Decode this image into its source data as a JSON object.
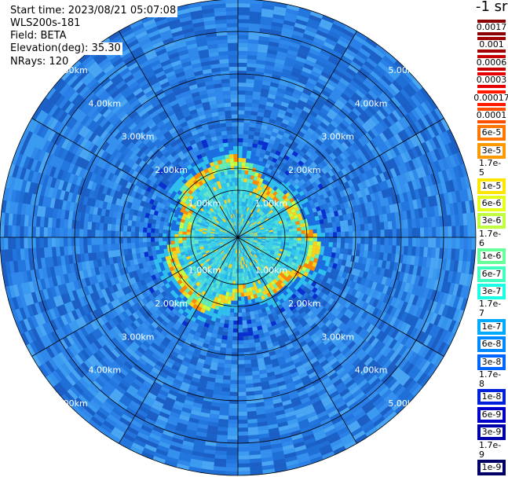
{
  "header": {
    "start_time": "Start time: 2023/08/21 05:07:08",
    "instrument": "WLS200s-181",
    "field": "Field: BETA",
    "elevation": "Elevation(deg): 35.30",
    "nrays": "NRays: 120"
  },
  "colorbar": {
    "unit": "-1 sr",
    "labels": [
      "0.0017",
      "0.001",
      "0.0006",
      "0.0003",
      "0.00017",
      "0.0001",
      "6e-5",
      "3e-5",
      "1.7e-5",
      "1e-5",
      "6e-6",
      "3e-6",
      "1.7e-6",
      "1e-6",
      "6e-7",
      "3e-7",
      "1.7e-7",
      "1e-7",
      "6e-8",
      "3e-8",
      "1.7e-8",
      "1e-8",
      "6e-9",
      "3e-9",
      "1.7e-9",
      "1e-9"
    ],
    "colors": [
      "#8b0000",
      "#a50000",
      "#c80000",
      "#e60000",
      "#ff1a00",
      "#ff4d00",
      "#ff7700",
      "#ff9900",
      "#ffc000",
      "#ffe600",
      "#e6ff1a",
      "#c0ff40",
      "#99ff66",
      "#66ff99",
      "#40ffc0",
      "#1affe6",
      "#00ccff",
      "#00aaff",
      "#0088ff",
      "#0066ff",
      "#0044ee",
      "#0022dd",
      "#0000cc",
      "#0000aa",
      "#000088",
      "#000066"
    ]
  },
  "ring_labels": [
    "1.00km",
    "2.00km",
    "3.00km",
    "4.00km",
    "5.00km"
  ],
  "plot": {
    "max_range_km": 6,
    "ring_spacing_km": 1,
    "colors": {
      "background": "#2b7fe0",
      "near": "#3ad6e6",
      "edge_hot": "#ffd21a",
      "edge_red": "#ff4a00"
    }
  }
}
